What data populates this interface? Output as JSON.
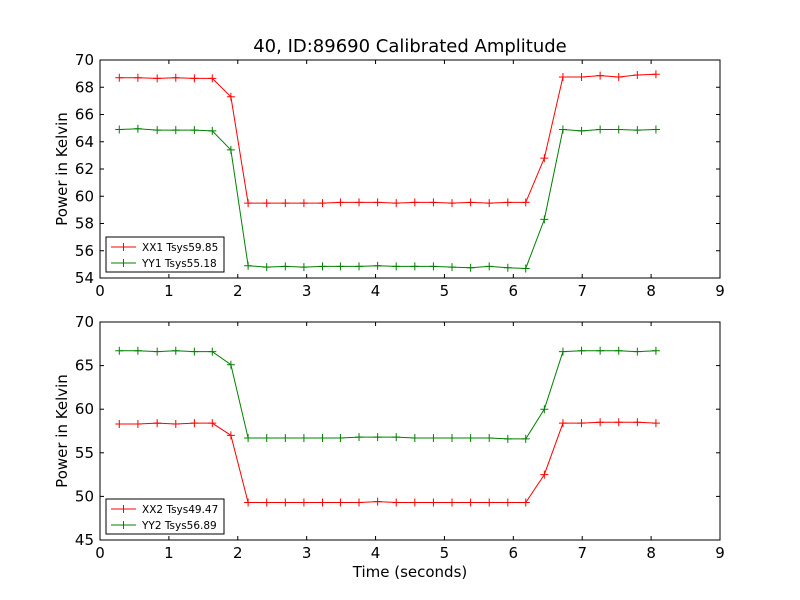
{
  "figure": {
    "title": "40, ID:89690 Calibrated Amplitude"
  },
  "colors": {
    "red": "#ff0000",
    "green": "#008000",
    "axes": "#000000",
    "background": "#ffffff"
  },
  "chart_data": [
    {
      "type": "line",
      "title": "40, ID:89690 Calibrated Amplitude",
      "xlabel": "",
      "ylabel": "Power in Kelvin",
      "xlim": [
        0,
        9
      ],
      "ylim": [
        54,
        70
      ],
      "xticks": [
        "0",
        "1",
        "2",
        "3",
        "4",
        "5",
        "6",
        "7",
        "8",
        "9"
      ],
      "yticks": [
        "54",
        "56",
        "58",
        "60",
        "62",
        "64",
        "66",
        "68",
        "70"
      ],
      "x": [
        0.28,
        0.55,
        0.83,
        1.1,
        1.37,
        1.63,
        1.9,
        2.15,
        2.42,
        2.69,
        2.96,
        3.23,
        3.49,
        3.76,
        4.03,
        4.3,
        4.57,
        4.84,
        5.11,
        5.38,
        5.65,
        5.92,
        6.18,
        6.45,
        6.72,
        6.99,
        7.26,
        7.53,
        7.8,
        8.07
      ],
      "series": [
        {
          "name": "XX1 Tsys59.85",
          "color": "#ff0000",
          "marker": "+",
          "values": [
            68.7,
            68.7,
            68.65,
            68.7,
            68.65,
            68.65,
            67.3,
            59.5,
            59.5,
            59.5,
            59.5,
            59.5,
            59.55,
            59.55,
            59.55,
            59.5,
            59.55,
            59.55,
            59.5,
            59.55,
            59.5,
            59.55,
            59.55,
            62.8,
            68.75,
            68.75,
            68.85,
            68.75,
            68.9,
            68.95
          ]
        },
        {
          "name": "YY1 Tsys55.18",
          "color": "#008000",
          "marker": "+",
          "values": [
            64.9,
            64.95,
            64.85,
            64.85,
            64.85,
            64.8,
            63.4,
            54.9,
            54.8,
            54.85,
            54.8,
            54.85,
            54.85,
            54.85,
            54.9,
            54.85,
            54.85,
            54.85,
            54.8,
            54.75,
            54.85,
            54.75,
            54.7,
            58.3,
            64.9,
            64.8,
            64.9,
            64.9,
            64.85,
            64.9
          ]
        }
      ],
      "legend": "lower-left",
      "grid": false
    },
    {
      "type": "line",
      "title": "",
      "xlabel": "Time (seconds)",
      "ylabel": "Power in Kelvin",
      "xlim": [
        0,
        9
      ],
      "ylim": [
        45,
        70
      ],
      "xticks": [
        "0",
        "1",
        "2",
        "3",
        "4",
        "5",
        "6",
        "7",
        "8",
        "9"
      ],
      "yticks": [
        "45",
        "50",
        "55",
        "60",
        "65",
        "70"
      ],
      "x": [
        0.28,
        0.55,
        0.83,
        1.1,
        1.37,
        1.63,
        1.9,
        2.15,
        2.42,
        2.69,
        2.96,
        3.23,
        3.49,
        3.76,
        4.03,
        4.3,
        4.57,
        4.84,
        5.11,
        5.38,
        5.65,
        5.92,
        6.18,
        6.45,
        6.72,
        6.99,
        7.26,
        7.53,
        7.8,
        8.07
      ],
      "series": [
        {
          "name": "XX2 Tsys49.47",
          "color": "#ff0000",
          "marker": "+",
          "values": [
            58.3,
            58.3,
            58.4,
            58.3,
            58.4,
            58.4,
            57.0,
            49.3,
            49.3,
            49.3,
            49.3,
            49.3,
            49.3,
            49.3,
            49.4,
            49.3,
            49.3,
            49.3,
            49.3,
            49.3,
            49.3,
            49.3,
            49.3,
            52.5,
            58.4,
            58.4,
            58.5,
            58.5,
            58.5,
            58.4
          ]
        },
        {
          "name": "YY2 Tsys56.89",
          "color": "#008000",
          "marker": "+",
          "values": [
            66.7,
            66.7,
            66.6,
            66.7,
            66.6,
            66.6,
            65.1,
            56.7,
            56.7,
            56.7,
            56.7,
            56.7,
            56.7,
            56.8,
            56.8,
            56.8,
            56.7,
            56.7,
            56.7,
            56.7,
            56.7,
            56.6,
            56.6,
            60.0,
            66.6,
            66.7,
            66.7,
            66.7,
            66.6,
            66.7
          ]
        }
      ],
      "legend": "lower-left",
      "grid": false
    }
  ]
}
